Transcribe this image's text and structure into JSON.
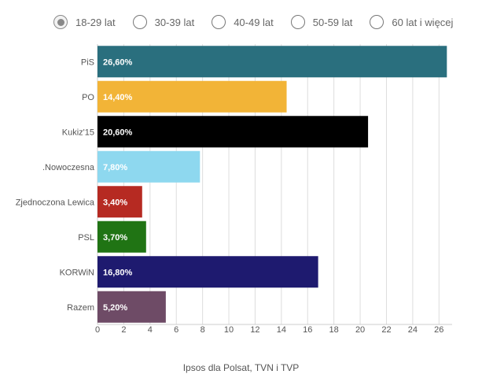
{
  "age_tabs": [
    {
      "label": "18-29 lat",
      "selected": true
    },
    {
      "label": "30-39 lat",
      "selected": false
    },
    {
      "label": "40-49 lat",
      "selected": false
    },
    {
      "label": "50-59 lat",
      "selected": false
    },
    {
      "label": "60 lat i więcej",
      "selected": false
    }
  ],
  "source": "Ipsos dla Polsat, TVN i TVP",
  "chart_data": {
    "type": "bar",
    "orientation": "horizontal",
    "categories": [
      "PiS",
      "PO",
      "Kukiz'15",
      ".Nowoczesna",
      "Zjednoczona Lewica",
      "PSL",
      "KORWiN",
      "Razem"
    ],
    "values": [
      26.6,
      14.4,
      20.6,
      7.8,
      3.4,
      3.7,
      16.8,
      5.2
    ],
    "data_labels": [
      "26,60%",
      "14,40%",
      "20,60%",
      "7,80%",
      "3,40%",
      "3,70%",
      "16,80%",
      "5,20%"
    ],
    "colors": [
      "#2a6f7e",
      "#f2b437",
      "#000000",
      "#8ed8ef",
      "#b62a22",
      "#207414",
      "#1e1a6f",
      "#6e4b66"
    ],
    "label_colors": [
      "#ffffff",
      "#ffffff",
      "#ffffff",
      "#ffffff",
      "#ffffff",
      "#ffffff",
      "#ffffff",
      "#ffffff"
    ],
    "xlim": [
      0,
      27
    ],
    "xticks": [
      0,
      2,
      4,
      6,
      8,
      10,
      12,
      14,
      16,
      18,
      20,
      22,
      24,
      26
    ],
    "grid": true
  }
}
